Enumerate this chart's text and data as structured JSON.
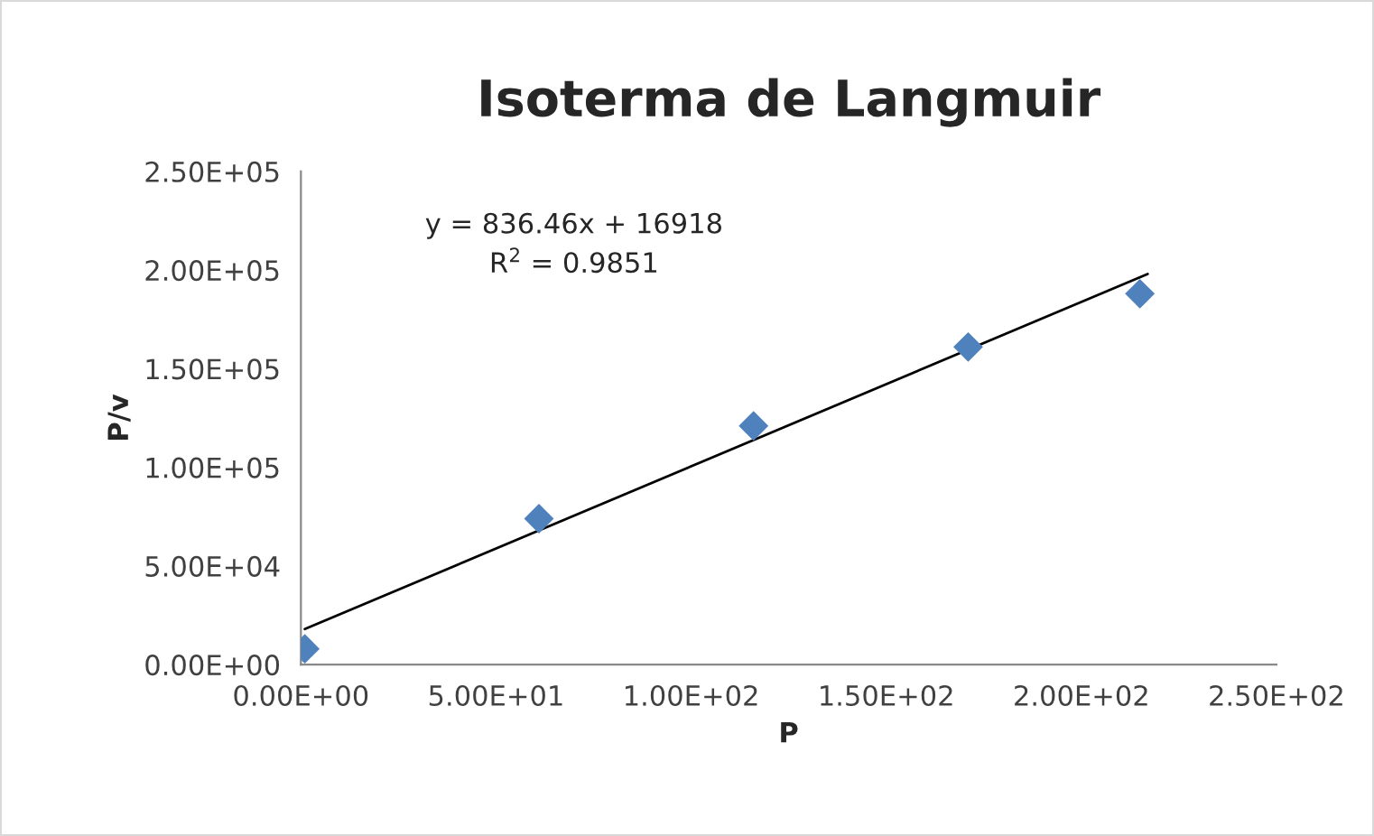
{
  "chart_data": {
    "type": "scatter",
    "title": "Isoterma de Langmuir",
    "xlabel": "P",
    "ylabel": "P/v",
    "x": [
      1,
      61,
      116,
      171,
      215
    ],
    "series": [
      {
        "color": "#4f81bd",
        "marker": "diamond",
        "values": [
          8000,
          74000,
          121000,
          161000,
          188000
        ]
      },
      {
        "type": "line",
        "color": "#000000",
        "marker": "none",
        "line_style": "solid",
        "x": [
          1,
          217
        ],
        "values": [
          18000,
          198000
        ]
      }
    ],
    "xlim": [
      0,
      250
    ],
    "ylim": [
      0,
      250000
    ],
    "xticks": [
      {
        "value": 0,
        "label": "0.00E+00"
      },
      {
        "value": 50,
        "label": "5.00E+01"
      },
      {
        "value": 100,
        "label": "1.00E+02"
      },
      {
        "value": 150,
        "label": "1.50E+02"
      },
      {
        "value": 200,
        "label": "2.00E+02"
      },
      {
        "value": 250,
        "label": "2.50E+02"
      }
    ],
    "yticks": [
      {
        "value": 0,
        "label": "0.00E+00"
      },
      {
        "value": 50000,
        "label": "5.00E+04"
      },
      {
        "value": 100000,
        "label": "1.00E+05"
      },
      {
        "value": 150000,
        "label": "1.50E+05"
      },
      {
        "value": 200000,
        "label": "2.00E+05"
      },
      {
        "value": 250000,
        "label": "2.50E+05"
      }
    ],
    "annotations": [
      "y = 836.46x + 16918",
      "R$^{2}$ = 0.9851"
    ],
    "grid": false,
    "legend": false
  }
}
